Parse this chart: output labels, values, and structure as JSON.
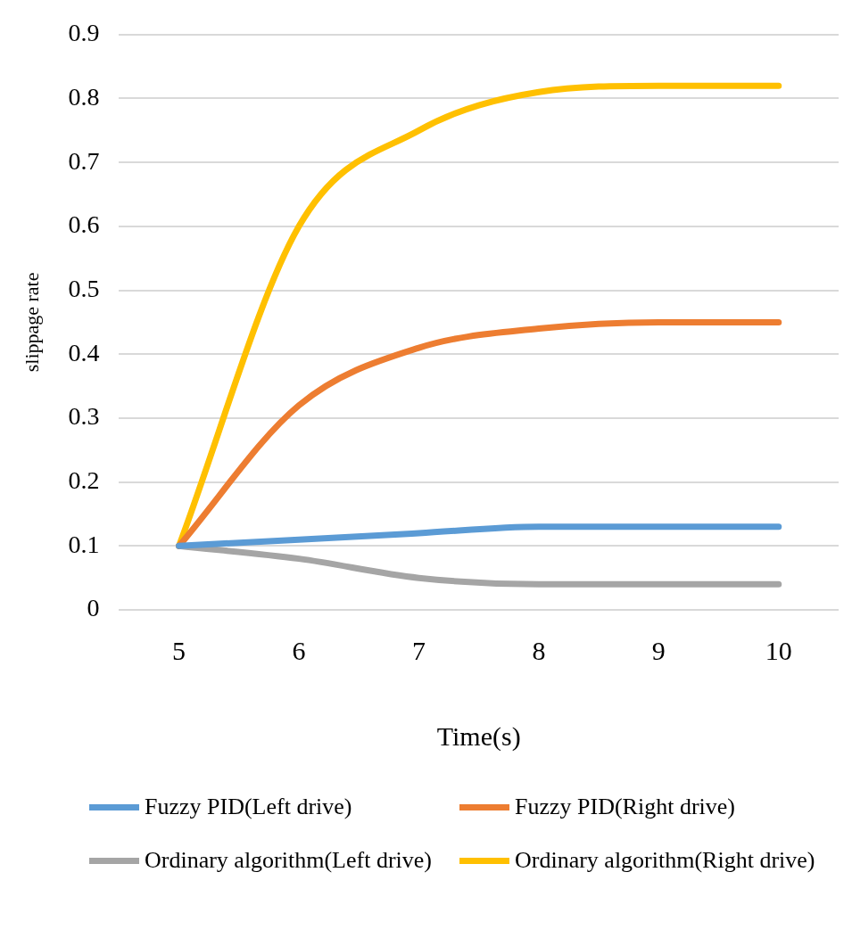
{
  "chart_data": {
    "type": "line",
    "xlabel": "Time(s)",
    "ylabel": "slippage rate",
    "categories": [
      "5",
      "6",
      "7",
      "8",
      "9",
      "10"
    ],
    "series": [
      {
        "name": "Fuzzy PID(Left drive)",
        "color": "#5b9bd5",
        "values": [
          0.1,
          0.11,
          0.12,
          0.13,
          0.13,
          0.13
        ]
      },
      {
        "name": "Fuzzy PID(Right drive)",
        "color": "#ed7d31",
        "values": [
          0.1,
          0.32,
          0.41,
          0.44,
          0.45,
          0.45
        ]
      },
      {
        "name": "Ordinary algorithm(Left drive)",
        "color": "#a5a5a5",
        "values": [
          0.1,
          0.08,
          0.05,
          0.04,
          0.04,
          0.04
        ]
      },
      {
        "name": "Ordinary algorithm(Right drive)",
        "color": "#ffc000",
        "values": [
          0.1,
          0.6,
          0.75,
          0.81,
          0.82,
          0.82
        ]
      }
    ],
    "ylim": [
      0,
      0.9
    ],
    "yticks": [
      0,
      0.1,
      0.2,
      0.3,
      0.4,
      0.5,
      0.6,
      0.7,
      0.8,
      0.9
    ],
    "grid": "y",
    "legend": "bottom",
    "marker": "none",
    "line_style": "solid"
  }
}
